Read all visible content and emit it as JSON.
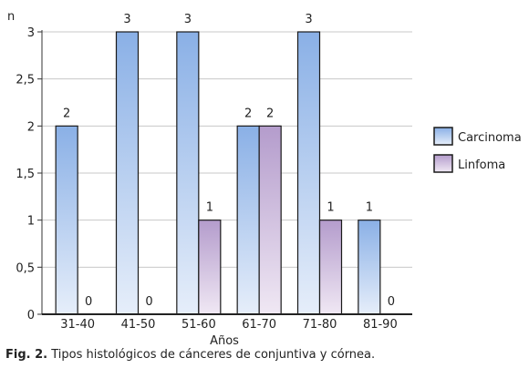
{
  "chart_data": {
    "type": "bar",
    "title": "",
    "xlabel": "Años",
    "ylabel": "n",
    "ylim": [
      0,
      3
    ],
    "yticks": [
      "0",
      "0,5",
      "1",
      "1,5",
      "2",
      "2,5",
      "3"
    ],
    "categories": [
      "31-40",
      "41-50",
      "51-60",
      "61-70",
      "71-80",
      "81-90"
    ],
    "series": [
      {
        "name": "Carcinoma",
        "values": [
          2,
          3,
          3,
          2,
          3,
          1
        ],
        "color": "#8fb3e3"
      },
      {
        "name": "Linfoma",
        "values": [
          0,
          0,
          1,
          2,
          1,
          0
        ],
        "color": "#b8a3cc"
      }
    ],
    "grid": true,
    "legend": "right"
  },
  "caption": {
    "label": "Fig. 2.",
    "text": "Tipos histológicos de cánceres de conjuntiva y córnea."
  }
}
